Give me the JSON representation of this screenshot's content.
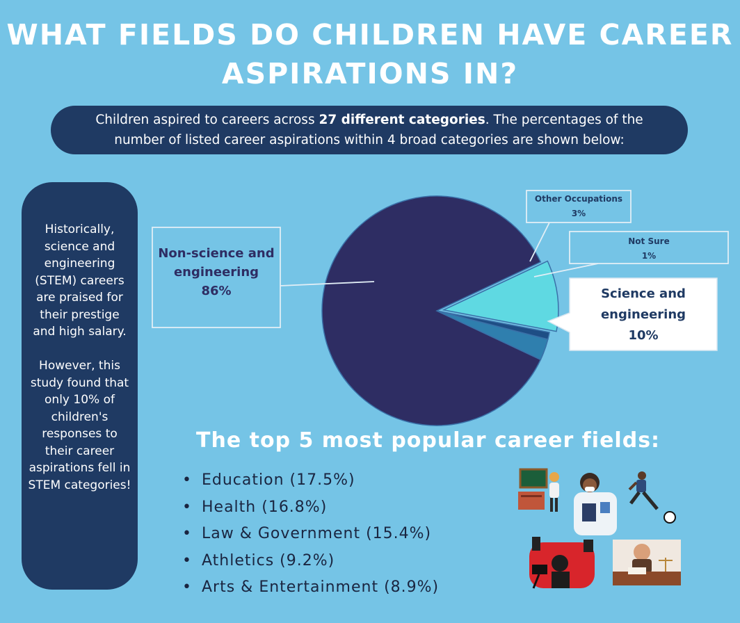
{
  "title": {
    "line1": "WHAT FIELDS DO CHILDREN HAVE CAREER",
    "line2": "ASPIRATIONS IN?"
  },
  "intro": {
    "line1_a": "Children aspired to careers across ",
    "line1_b": "27 different categories",
    "line1_c": ". The percentages of the",
    "line2": "number of listed career aspirations within 4 broad categories are shown below:"
  },
  "sidebar": {
    "paragraph1": "Historically, science and engineering (STEM) careers are praised for their prestige and high salary.",
    "paragraph2": "However, this study found that only 10% of children's responses to their career aspirations  fell in STEM categories!"
  },
  "chart_data": {
    "type": "pie",
    "title": "",
    "slices": [
      {
        "label_lines": [
          "Non-science and",
          "engineering"
        ],
        "value_label": "86%",
        "value": 86,
        "color": "#2e2d63"
      },
      {
        "label_lines": [
          "Other Occupations"
        ],
        "value_label": "3%",
        "value": 3,
        "color": "#2f7fae"
      },
      {
        "label_lines": [
          "Not Sure"
        ],
        "value_label": "1%",
        "value": 1,
        "color": "#1e4e85"
      },
      {
        "label_lines": [
          "Science and",
          "engineering"
        ],
        "value_label": "10%",
        "value": 10,
        "color": "#5fd9e2"
      }
    ]
  },
  "top5": {
    "heading": "The top 5 most popular career fields:",
    "items": [
      "Education (17.5%)",
      "Health (16.8%)",
      "Law & Government (15.4%)",
      "Athletics (9.2%)",
      "Arts & Entertainment (8.9%)"
    ]
  },
  "colors": {
    "background": "#75c4e6",
    "panel": "#1f3a63",
    "pie_main": "#2e2d63",
    "science": "#5fd9e2"
  }
}
